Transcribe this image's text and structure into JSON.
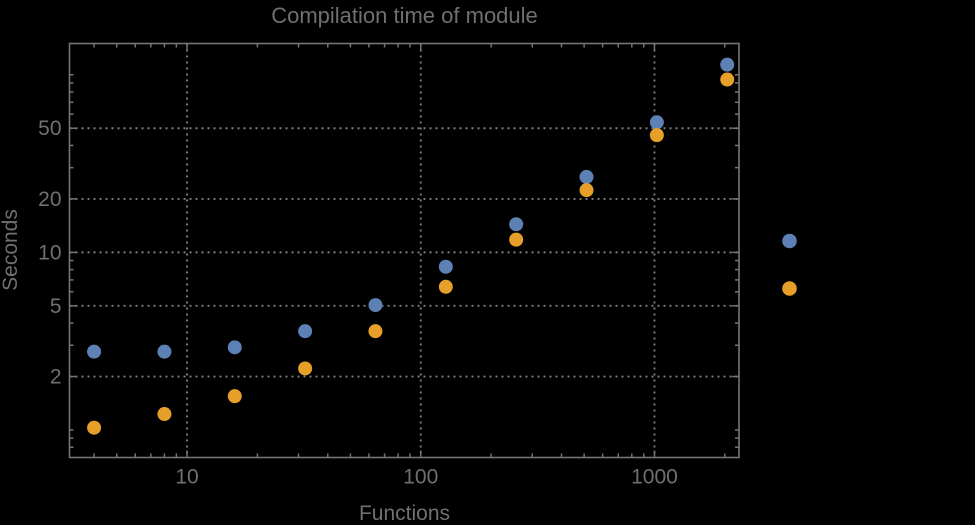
{
  "window": {
    "background": "#000000",
    "text_color": "#707070",
    "frame_color": "#757575",
    "grid_color": "#7e7e7e"
  },
  "chart_data": {
    "type": "scatter",
    "title": "Compilation time of module",
    "xlabel": "Functions",
    "ylabel": "Seconds",
    "x_scale": "log",
    "y_scale": "log",
    "x_range": [
      3.14,
      2300
    ],
    "y_range": [
      0.7,
      150
    ],
    "grid": "dotted lines at labeled ticks, both axes",
    "x_tick_values": [
      10,
      100,
      1000
    ],
    "x_tick_labels": [
      "10",
      "100",
      "1000"
    ],
    "x_minor_ticks": [
      4,
      5,
      6,
      7,
      8,
      9,
      20,
      30,
      40,
      50,
      60,
      70,
      80,
      90,
      200,
      300,
      400,
      500,
      600,
      700,
      800,
      900,
      2000
    ],
    "y_tick_values": [
      2,
      5,
      10,
      20,
      50
    ],
    "y_tick_labels": [
      "2",
      "5",
      "10",
      "20",
      "50"
    ],
    "y_minor_ticks": [
      0.8,
      0.9,
      1,
      3,
      4,
      6,
      7,
      8,
      9,
      30,
      40,
      60,
      70,
      80,
      90,
      100
    ],
    "x": [
      4,
      8,
      16,
      32,
      64,
      128,
      256,
      512,
      1024,
      2048
    ],
    "series": [
      {
        "name": "blue-series",
        "color": "#5E81B5",
        "values": [
          2.76,
          2.76,
          2.92,
          3.6,
          5.05,
          8.3,
          14.4,
          26.6,
          54,
          114
        ]
      },
      {
        "name": "orange-series",
        "color": "#E6A029",
        "values": [
          1.03,
          1.23,
          1.55,
          2.22,
          3.6,
          6.4,
          11.8,
          22.4,
          45.7,
          94
        ]
      }
    ],
    "legend": {
      "labels_visible": false,
      "position": "right-outside-middle"
    },
    "marker": {
      "shape": "circle",
      "radius_px": 7
    }
  }
}
